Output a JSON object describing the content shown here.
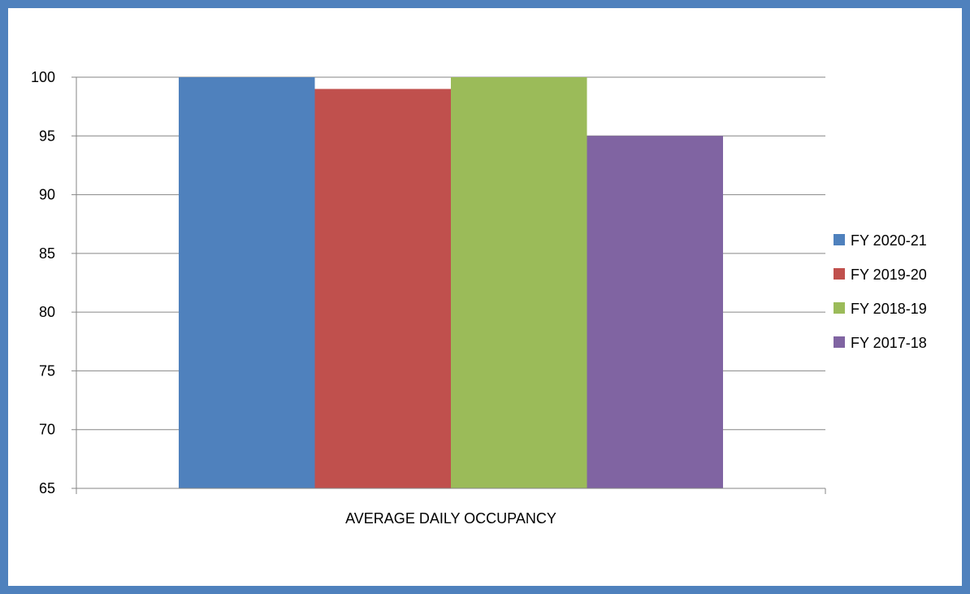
{
  "chart_data": {
    "type": "bar",
    "title": "",
    "xlabel": "",
    "ylabel": "",
    "categories": [
      "AVERAGE DAILY OCCUPANCY"
    ],
    "series": [
      {
        "name": "FY 2020-21",
        "values": [
          100
        ],
        "color": "#4F81BD"
      },
      {
        "name": "FY 2019-20",
        "values": [
          99
        ],
        "color": "#C0504D"
      },
      {
        "name": "FY 2018-19",
        "values": [
          100
        ],
        "color": "#9BBB59"
      },
      {
        "name": "FY 2017-18",
        "values": [
          95
        ],
        "color": "#8064A2"
      }
    ],
    "ylim": [
      65,
      100
    ],
    "yticks": [
      65,
      70,
      75,
      80,
      85,
      90,
      95,
      100
    ],
    "grid": true,
    "legend": "right"
  },
  "frame": {
    "border_color": "#4F81BD"
  }
}
